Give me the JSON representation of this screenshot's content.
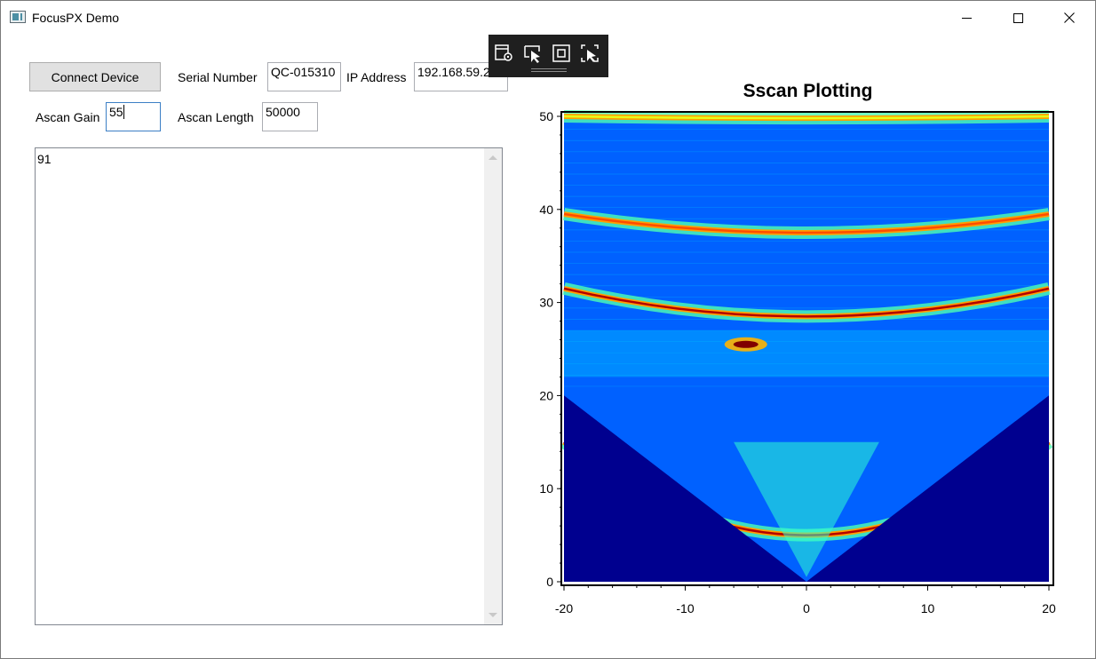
{
  "window": {
    "title": "FocusPX Demo"
  },
  "controls": {
    "connect_button": "Connect Device",
    "serial_label": "Serial Number",
    "serial_value": "QC-015310",
    "ip_label": "IP Address",
    "ip_value": "192.168.59.2 ",
    "gain_label": "Ascan Gain",
    "gain_value": "55",
    "length_label": "Ascan Length",
    "length_value": "50000"
  },
  "output_box": {
    "text": "91"
  },
  "floating_toolbar": {
    "icons": [
      "live-visual-tree-icon",
      "select-element-icon",
      "display-layout-adorners-icon",
      "track-focused-element-icon"
    ]
  },
  "chart_data": {
    "type": "heatmap",
    "title": "Sscan Plotting",
    "xlabel": "",
    "ylabel": "",
    "xlim": [
      -20,
      20
    ],
    "ylim": [
      0,
      50
    ],
    "x_ticks": [
      "-20",
      "-10",
      "0",
      "10",
      "20"
    ],
    "y_ticks": [
      "0",
      "10",
      "20",
      "30",
      "40",
      "50"
    ],
    "colormap": "jet",
    "background_color": "#00008f",
    "sector": {
      "apex": [
        0,
        0
      ],
      "left_edge_at_x_min": 20,
      "right_edge_at_x_max": 20
    },
    "bands": [
      {
        "type": "arc",
        "center_x": 0,
        "y_at_center": 5,
        "y_at_edges": 15,
        "intensity": 0.95
      },
      {
        "type": "arc",
        "center_x": 0,
        "y_at_center": 28.5,
        "y_at_edges": 31.5,
        "intensity": 0.95
      },
      {
        "type": "arc",
        "center_x": 0,
        "y_at_center": 37.5,
        "y_at_edges": 39.5,
        "intensity": 0.8
      },
      {
        "type": "arc",
        "center_x": 0,
        "y_at_center": 49.8,
        "y_at_edges": 50,
        "intensity": 0.6
      },
      {
        "type": "spot",
        "x": -5,
        "y": 25.5,
        "intensity": 1.0
      }
    ]
  }
}
